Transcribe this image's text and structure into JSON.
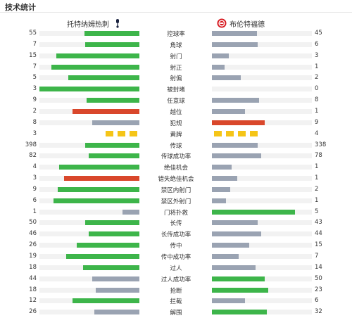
{
  "header": {
    "title": "技术统计"
  },
  "teams": {
    "home": {
      "name": "托特纳姆热刺",
      "crest_icon": "rooster-crest-icon"
    },
    "away": {
      "name": "布伦特福德",
      "crest_icon": "bee-crest-icon"
    }
  },
  "colors": {
    "green": "#3db54a",
    "grey": "#9aa3b2",
    "red": "#d9472b",
    "yellow": "#f5c518"
  },
  "stats": [
    {
      "label": "控球率",
      "home": "55",
      "away": "45",
      "hf": 0.55,
      "af": 0.45,
      "hc": "green",
      "ac": "grey"
    },
    {
      "label": "角球",
      "home": "7",
      "away": "6",
      "hf": 0.54,
      "af": 0.46,
      "hc": "green",
      "ac": "grey"
    },
    {
      "label": "射门",
      "home": "15",
      "away": "3",
      "hf": 0.83,
      "af": 0.17,
      "hc": "green",
      "ac": "grey"
    },
    {
      "label": "射正",
      "home": "7",
      "away": "1",
      "hf": 0.88,
      "af": 0.13,
      "hc": "green",
      "ac": "grey"
    },
    {
      "label": "射偏",
      "home": "5",
      "away": "2",
      "hf": 0.71,
      "af": 0.29,
      "hc": "green",
      "ac": "grey"
    },
    {
      "label": "被封堵",
      "home": "3",
      "away": "0",
      "hf": 1.0,
      "af": 0.0,
      "hc": "green",
      "ac": "grey"
    },
    {
      "label": "任意球",
      "home": "9",
      "away": "8",
      "hf": 0.53,
      "af": 0.47,
      "hc": "green",
      "ac": "grey"
    },
    {
      "label": "越位",
      "home": "2",
      "away": "1",
      "hf": 0.67,
      "af": 0.33,
      "hc": "red",
      "ac": "grey"
    },
    {
      "label": "犯规",
      "home": "8",
      "away": "9",
      "hf": 0.47,
      "af": 0.53,
      "hc": "grey",
      "ac": "red"
    },
    {
      "label": "黄牌",
      "home": "3",
      "away": "4",
      "cards": true,
      "hn": 3,
      "an": 4
    },
    {
      "label": "传球",
      "home": "398",
      "away": "338",
      "hf": 0.54,
      "af": 0.46,
      "hc": "green",
      "ac": "grey"
    },
    {
      "label": "传球成功率",
      "home": "82",
      "away": "78",
      "hf": 0.51,
      "af": 0.49,
      "hc": "green",
      "ac": "grey"
    },
    {
      "label": "绝佳机会",
      "home": "4",
      "away": "1",
      "hf": 0.8,
      "af": 0.2,
      "hc": "green",
      "ac": "grey"
    },
    {
      "label": "错失绝佳机会",
      "home": "3",
      "away": "1",
      "hf": 0.75,
      "af": 0.25,
      "hc": "red",
      "ac": "grey"
    },
    {
      "label": "禁区内射门",
      "home": "9",
      "away": "2",
      "hf": 0.82,
      "af": 0.18,
      "hc": "green",
      "ac": "grey"
    },
    {
      "label": "禁区外射门",
      "home": "6",
      "away": "1",
      "hf": 0.86,
      "af": 0.14,
      "hc": "green",
      "ac": "grey"
    },
    {
      "label": "门将扑救",
      "home": "1",
      "away": "5",
      "hf": 0.17,
      "af": 0.83,
      "hc": "grey",
      "ac": "green"
    },
    {
      "label": "长传",
      "home": "50",
      "away": "43",
      "hf": 0.54,
      "af": 0.46,
      "hc": "green",
      "ac": "grey"
    },
    {
      "label": "长传成功率",
      "home": "46",
      "away": "44",
      "hf": 0.51,
      "af": 0.49,
      "hc": "green",
      "ac": "grey"
    },
    {
      "label": "传中",
      "home": "26",
      "away": "15",
      "hf": 0.63,
      "af": 0.37,
      "hc": "green",
      "ac": "grey"
    },
    {
      "label": "传中成功率",
      "home": "19",
      "away": "7",
      "hf": 0.73,
      "af": 0.27,
      "hc": "green",
      "ac": "grey"
    },
    {
      "label": "过人",
      "home": "18",
      "away": "14",
      "hf": 0.56,
      "af": 0.44,
      "hc": "green",
      "ac": "grey"
    },
    {
      "label": "过人成功率",
      "home": "44",
      "away": "50",
      "hf": 0.47,
      "af": 0.53,
      "hc": "grey",
      "ac": "green"
    },
    {
      "label": "抢断",
      "home": "18",
      "away": "23",
      "hf": 0.44,
      "af": 0.56,
      "hc": "grey",
      "ac": "green"
    },
    {
      "label": "拦截",
      "home": "12",
      "away": "6",
      "hf": 0.67,
      "af": 0.33,
      "hc": "green",
      "ac": "grey"
    },
    {
      "label": "解围",
      "home": "26",
      "away": "32",
      "hf": 0.45,
      "af": 0.55,
      "hc": "grey",
      "ac": "green"
    }
  ]
}
